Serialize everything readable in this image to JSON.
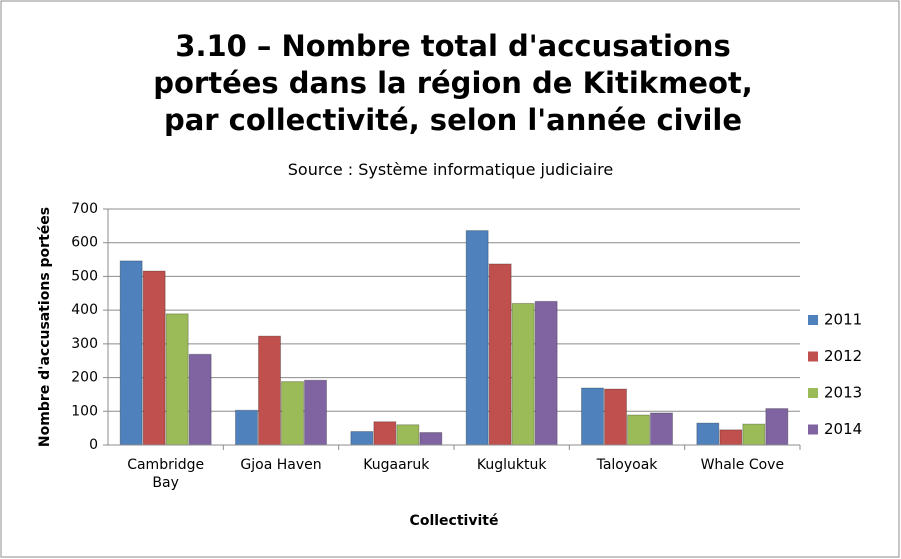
{
  "chart_data": {
    "type": "bar",
    "title": "3.10 – Nombre total d'accusations portées dans la région de Kitikmeot, par collectivité, selon l'année civile",
    "subtitle": "Source : Système informatique judiciaire",
    "x_label": "Collectivité",
    "y_label": "Nombre d'accusations portées",
    "categories": [
      "Cambridge Bay",
      "Gjoa Haven",
      "Kugaaruk",
      "Kugluktuk",
      "Taloyoak",
      "Whale Cove"
    ],
    "series": [
      {
        "name": "2011",
        "color": "#4f81bd",
        "values": [
          546,
          103,
          40,
          636,
          169,
          65
        ]
      },
      {
        "name": "2012",
        "color": "#c0504d",
        "values": [
          516,
          323,
          69,
          537,
          166,
          45
        ]
      },
      {
        "name": "2013",
        "color": "#9bbb59",
        "values": [
          389,
          188,
          60,
          420,
          89,
          62
        ]
      },
      {
        "name": "2014",
        "color": "#8064a2",
        "values": [
          269,
          192,
          37,
          426,
          95,
          108
        ]
      }
    ],
    "ylim": [
      0,
      700
    ],
    "yticks": [
      0,
      100,
      200,
      300,
      400,
      500,
      600,
      700
    ],
    "grid": true,
    "legend": "right"
  }
}
